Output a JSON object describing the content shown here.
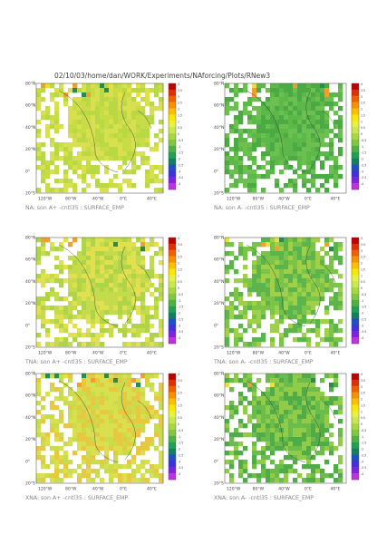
{
  "header": {
    "title": "02/10/03/home/dan/WORK/Experiments/NAforcing/Plots/RNew3"
  },
  "lat_labels": [
    "80°N",
    "60°N",
    "40°N",
    "20°N",
    "0°",
    "20°S"
  ],
  "lon_labels": [
    "120°W",
    "80°W",
    "40°W",
    "0°E",
    "40°E"
  ],
  "colorbar_labels": [
    "4",
    "3.5",
    "3",
    "2.5",
    "2",
    "1.5",
    "1",
    "0.5",
    "0",
    "-0.5",
    "-1",
    "-1.5",
    "-2",
    "-2.5",
    "-3",
    "-3.5",
    "-4"
  ],
  "panels": [
    {
      "caption": "NA: son A+ -cntl35 : SURFACE_EMP"
    },
    {
      "caption": "NA: son A- -cntl35 : SURFACE_EMP"
    },
    {
      "caption": "TNA: son A+ -cntl35 : SURFACE_EMP"
    },
    {
      "caption": "TNA: son A- -cntl35 : SURFACE_EMP"
    },
    {
      "caption": "XNA: son A+ -cntl35 : SURFACE_EMP"
    },
    {
      "caption": "XNA: son A- -cntl35 : SURFACE_EMP"
    }
  ]
}
